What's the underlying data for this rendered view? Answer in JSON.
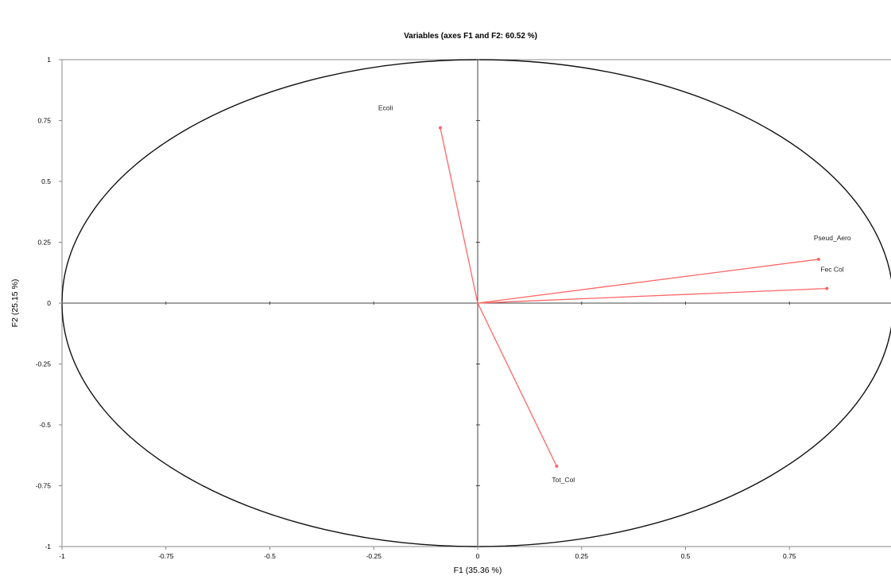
{
  "chart_data": {
    "type": "scatter",
    "title": "Variables (axes F1 and F2: 60.52 %)",
    "xlabel": "F1 (35.36 %)",
    "ylabel": "F2 (25.15 %)",
    "xlim": [
      -1,
      1
    ],
    "ylim": [
      -1,
      1
    ],
    "x_ticks": [
      {
        "value": -1,
        "label": "-1"
      },
      {
        "value": -0.75,
        "label": "-0.75"
      },
      {
        "value": -0.5,
        "label": "-0.5"
      },
      {
        "value": -0.25,
        "label": "-0.25"
      },
      {
        "value": 0,
        "label": "0"
      },
      {
        "value": 0.25,
        "label": "0.25"
      },
      {
        "value": 0.5,
        "label": "0.5"
      },
      {
        "value": 0.75,
        "label": "0.75"
      }
    ],
    "y_ticks": [
      {
        "value": 1,
        "label": "1"
      },
      {
        "value": 0.75,
        "label": "0.75"
      },
      {
        "value": 0.5,
        "label": "0.5"
      },
      {
        "value": 0.25,
        "label": "0.25"
      },
      {
        "value": 0,
        "label": "0"
      },
      {
        "value": -0.25,
        "label": "-0.25"
      },
      {
        "value": -0.5,
        "label": "-0.5"
      },
      {
        "value": -0.75,
        "label": "-0.75"
      },
      {
        "value": -1,
        "label": "-1"
      }
    ],
    "circle": {
      "radius": 1,
      "center": [
        0,
        0
      ]
    },
    "grid": false,
    "legend": "none",
    "vector_color": "#ff6666",
    "variables": [
      {
        "name": "Ecoli",
        "x": -0.09,
        "y": 0.72
      },
      {
        "name": "Pseud_Aero",
        "x": 0.82,
        "y": 0.18
      },
      {
        "name": "Fec Col",
        "x": 0.84,
        "y": 0.06
      },
      {
        "name": "Tot_Col",
        "x": 0.19,
        "y": -0.67
      }
    ]
  }
}
